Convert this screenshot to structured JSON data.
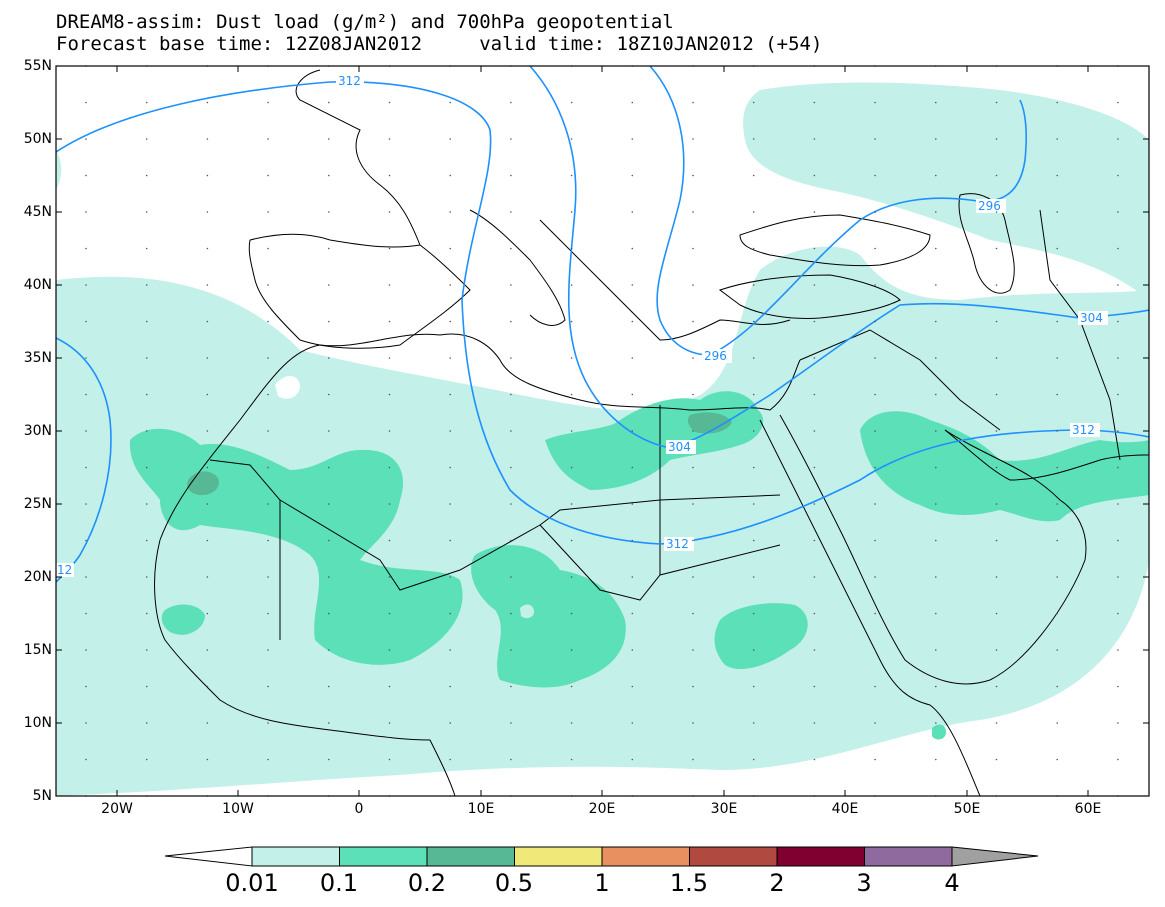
{
  "titles": {
    "line1": "DREAM8-assim: Dust load (g/m²) and 700hPa geopotential",
    "line2": "Forecast base time: 12Z08JAN2012     valid time: 18Z10JAN2012 (+54)"
  },
  "map": {
    "lat_ticks": [
      "55N",
      "50N",
      "45N",
      "40N",
      "35N",
      "30N",
      "25N",
      "20N",
      "15N",
      "10N",
      "5N"
    ],
    "lon_ticks": [
      "20W",
      "10W",
      "0",
      "10E",
      "20E",
      "30E",
      "40E",
      "50E",
      "60E"
    ],
    "contour_labels": [
      "312",
      "312",
      "312",
      "312",
      "304",
      "304",
      "296",
      "296",
      "312",
      "12"
    ]
  },
  "colorbar": {
    "labels": [
      "0.01",
      "0.1",
      "0.2",
      "0.5",
      "1",
      "1.5",
      "2",
      "3",
      "4"
    ],
    "colors": [
      "#c4f0ea",
      "#5ce0b8",
      "#56b894",
      "#f0e878",
      "#e89060",
      "#b04a40",
      "#800030",
      "#8e6a9e"
    ],
    "under_color": "#ffffff",
    "over_color": "#a0a0a0"
  },
  "colors": {
    "contour": "#1e90ff",
    "coast": "#000000"
  }
}
